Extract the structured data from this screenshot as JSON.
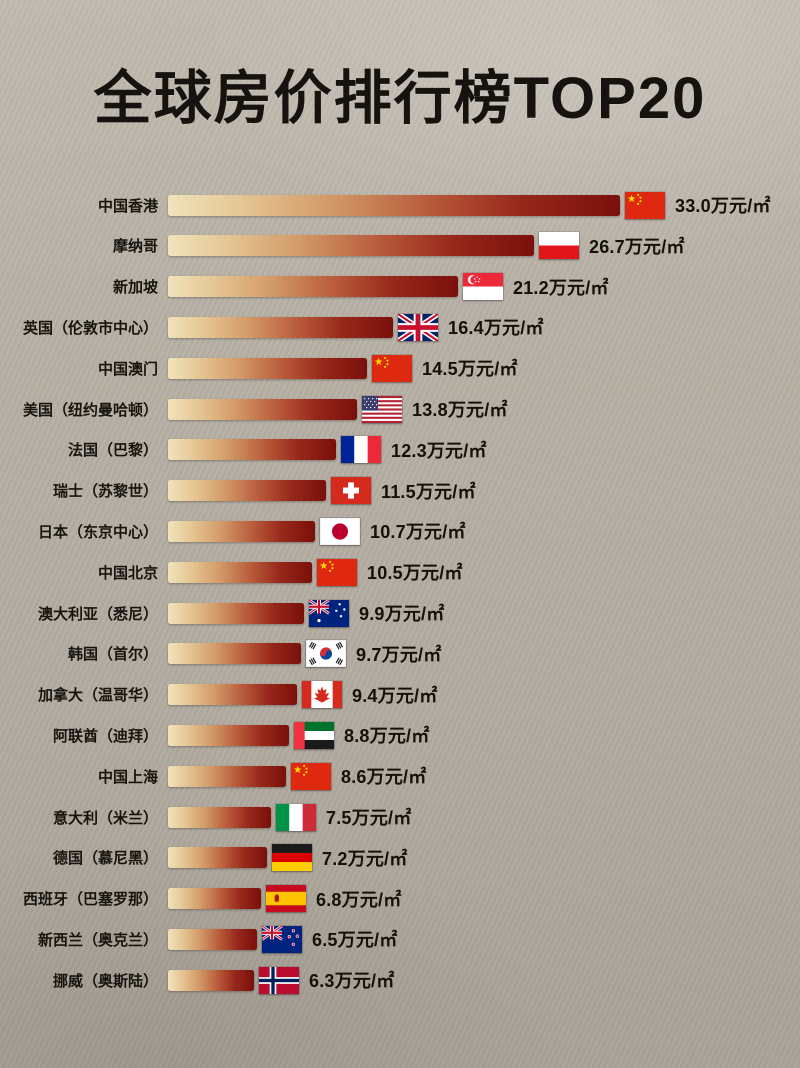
{
  "title": "全球房价排行榜TOP20",
  "style": {
    "background": "#b5aea3",
    "title_color": "#16130e",
    "text_color": "#14110b",
    "bar_gradient": [
      "#f0e3bb",
      "#d29a67",
      "#b85a3a",
      "#7a100b"
    ]
  },
  "chart_data": {
    "type": "bar",
    "orientation": "horizontal",
    "title": "全球房价排行榜TOP20",
    "unit": "万元/㎡",
    "xlim": [
      0,
      33.0
    ],
    "max_value": 33.0,
    "grid": false,
    "legend": "none",
    "rows": [
      {
        "label": "中国香港",
        "value": 33.0,
        "value_label": "33.0万元/㎡",
        "flag": "cn",
        "flag_name": "china-flag-icon"
      },
      {
        "label": "摩纳哥",
        "value": 26.7,
        "value_label": "26.7万元/㎡",
        "flag": "mc",
        "flag_name": "monaco-flag-icon"
      },
      {
        "label": "新加坡",
        "value": 21.2,
        "value_label": "21.2万元/㎡",
        "flag": "sg",
        "flag_name": "singapore-flag-icon"
      },
      {
        "label": "英国（伦敦市中心）",
        "value": 16.4,
        "value_label": "16.4万元/㎡",
        "flag": "gb",
        "flag_name": "uk-flag-icon"
      },
      {
        "label": "中国澳门",
        "value": 14.5,
        "value_label": "14.5万元/㎡",
        "flag": "cn",
        "flag_name": "china-flag-icon"
      },
      {
        "label": "美国（纽约曼哈顿）",
        "value": 13.8,
        "value_label": "13.8万元/㎡",
        "flag": "us",
        "flag_name": "usa-flag-icon"
      },
      {
        "label": "法国（巴黎）",
        "value": 12.3,
        "value_label": "12.3万元/㎡",
        "flag": "fr",
        "flag_name": "france-flag-icon"
      },
      {
        "label": "瑞士（苏黎世）",
        "value": 11.5,
        "value_label": "11.5万元/㎡",
        "flag": "ch",
        "flag_name": "switzerland-flag-icon"
      },
      {
        "label": "日本（东京中心）",
        "value": 10.7,
        "value_label": "10.7万元/㎡",
        "flag": "jp",
        "flag_name": "japan-flag-icon"
      },
      {
        "label": "中国北京",
        "value": 10.5,
        "value_label": "10.5万元/㎡",
        "flag": "cn",
        "flag_name": "china-flag-icon"
      },
      {
        "label": "澳大利亚（悉尼）",
        "value": 9.9,
        "value_label": "9.9万元/㎡",
        "flag": "au",
        "flag_name": "australia-flag-icon"
      },
      {
        "label": "韩国（首尔）",
        "value": 9.7,
        "value_label": "9.7万元/㎡",
        "flag": "kr",
        "flag_name": "south-korea-flag-icon"
      },
      {
        "label": "加拿大（温哥华）",
        "value": 9.4,
        "value_label": "9.4万元/㎡",
        "flag": "ca",
        "flag_name": "canada-flag-icon"
      },
      {
        "label": "阿联酋（迪拜）",
        "value": 8.8,
        "value_label": "8.8万元/㎡",
        "flag": "ae",
        "flag_name": "uae-flag-icon"
      },
      {
        "label": "中国上海",
        "value": 8.6,
        "value_label": "8.6万元/㎡",
        "flag": "cn",
        "flag_name": "china-flag-icon"
      },
      {
        "label": "意大利（米兰）",
        "value": 7.5,
        "value_label": "7.5万元/㎡",
        "flag": "it",
        "flag_name": "italy-flag-icon"
      },
      {
        "label": "德国（慕尼黑）",
        "value": 7.2,
        "value_label": "7.2万元/㎡",
        "flag": "de",
        "flag_name": "germany-flag-icon"
      },
      {
        "label": "西班牙（巴塞罗那）",
        "value": 6.8,
        "value_label": "6.8万元/㎡",
        "flag": "es",
        "flag_name": "spain-flag-icon"
      },
      {
        "label": "新西兰（奥克兰）",
        "value": 6.5,
        "value_label": "6.5万元/㎡",
        "flag": "nz",
        "flag_name": "new-zealand-flag-icon"
      },
      {
        "label": "挪威（奥斯陆）",
        "value": 6.3,
        "value_label": "6.3万元/㎡",
        "flag": "no",
        "flag_name": "norway-flag-icon"
      }
    ]
  }
}
